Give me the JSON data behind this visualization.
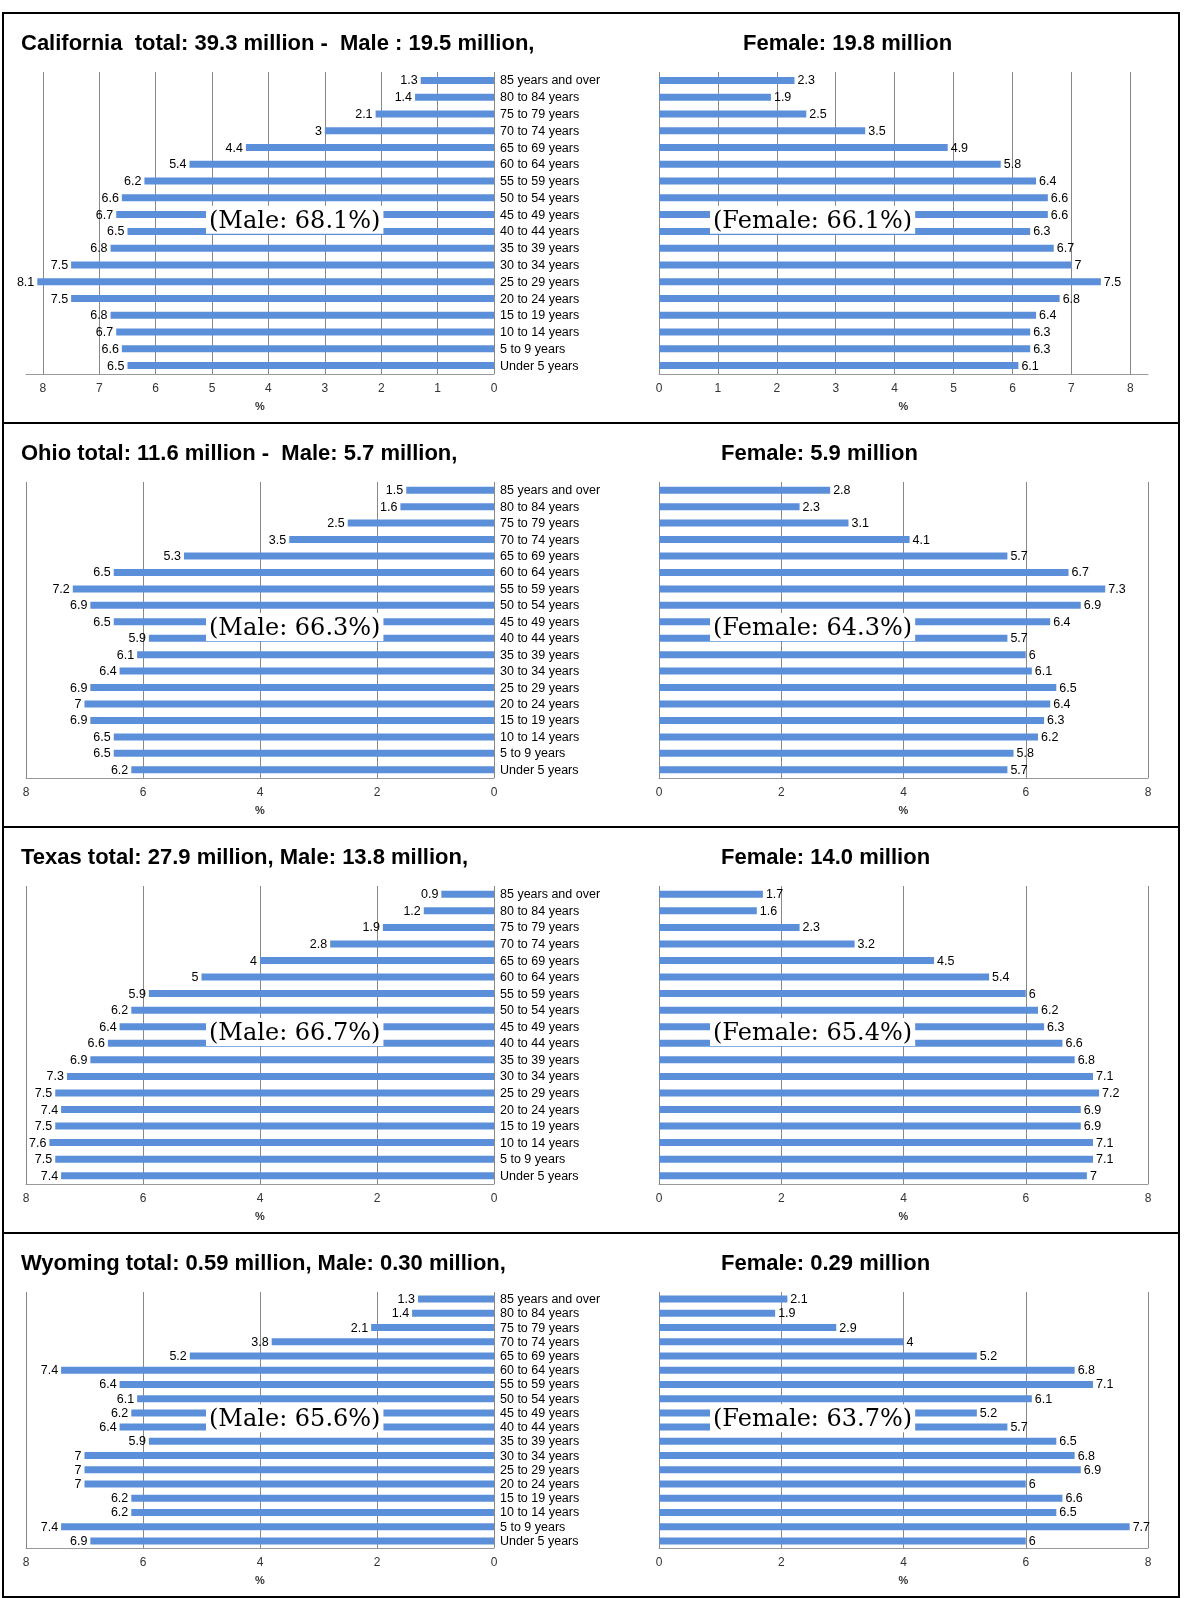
{
  "chart_data": [
    {
      "type": "bar",
      "orientation": "horizontal",
      "title": "California  total: 39.3 million -  Male : 19.5 million,",
      "categories": [
        "85 years and over",
        "80 to 84 years",
        "75 to 79 years",
        "70 to 74 years",
        "65 to 69 years",
        "60 to 64 years",
        "55 to 59 years",
        "50 to 54 years",
        "45 to 49 years",
        "40 to 44 years",
        "35 to 39 years",
        "30 to 34 years",
        "25 to 29 years",
        "20 to 24 years",
        "15 to 19 years",
        "10 to 14 years",
        "5 to 9 years",
        "Under 5 years"
      ],
      "series": [
        {
          "color": "#5b8fd9",
          "values": [
            1.3,
            1.4,
            2.1,
            3,
            4.4,
            5.4,
            6.2,
            6.6,
            6.7,
            6.5,
            6.8,
            7.5,
            8.1,
            7.5,
            6.8,
            6.7,
            6.6,
            6.5
          ]
        }
      ],
      "xlim": [
        8.3,
        0
      ],
      "xticks": [
        8,
        7,
        6,
        5,
        4,
        3,
        2,
        1,
        0
      ],
      "xlabel": "%",
      "grid": "x",
      "data_labels": true,
      "annotations": [
        "(Male: 68.1%)"
      ]
    },
    {
      "type": "bar",
      "orientation": "horizontal",
      "title": "Female: 19.8 million",
      "categories": [
        null,
        null,
        null,
        null,
        null,
        null,
        null,
        null,
        null,
        null,
        null,
        null,
        null,
        null,
        null,
        null,
        null,
        null
      ],
      "series": [
        {
          "color": "#5b8fd9",
          "values": [
            2.3,
            1.9,
            2.5,
            3.5,
            4.9,
            5.8,
            6.4,
            6.6,
            6.6,
            6.3,
            6.7,
            7,
            7.5,
            6.8,
            6.4,
            6.3,
            6.3,
            6.1
          ]
        }
      ],
      "xlim": [
        0,
        8.3
      ],
      "xticks": [
        0,
        1,
        2,
        3,
        4,
        5,
        6,
        7,
        8
      ],
      "xlabel": "%",
      "grid": "x",
      "data_labels": true,
      "annotations": [
        "(Female: 66.1%)"
      ]
    },
    {
      "type": "bar",
      "orientation": "horizontal",
      "title": "Ohio total: 11.6 million -  Male: 5.7 million,",
      "categories": [
        "85 years and over",
        "80 to 84 years",
        "75 to 79 years",
        "70 to 74 years",
        "65 to 69 years",
        "60 to 64 years",
        "55 to 59 years",
        "50 to 54 years",
        "45 to 49 years",
        "40 to 44 years",
        "35 to 39 years",
        "30 to 34 years",
        "25 to 29 years",
        "20 to 24 years",
        "15 to 19 years",
        "10 to 14 years",
        "5 to 9 years",
        "Under 5 years"
      ],
      "series": [
        {
          "color": "#5b8fd9",
          "values": [
            1.5,
            1.6,
            2.5,
            3.5,
            5.3,
            6.5,
            7.2,
            6.9,
            6.5,
            5.9,
            6.1,
            6.4,
            6.9,
            7,
            6.9,
            6.5,
            6.5,
            6.2
          ]
        }
      ],
      "xlim": [
        8,
        0
      ],
      "xticks": [
        8,
        6,
        4,
        2,
        0
      ],
      "xlabel": "%",
      "grid": "x",
      "data_labels": true,
      "annotations": [
        "(Male: 66.3%)"
      ]
    },
    {
      "type": "bar",
      "orientation": "horizontal",
      "title": "Female: 5.9 million",
      "categories": [
        null,
        null,
        null,
        null,
        null,
        null,
        null,
        null,
        null,
        null,
        null,
        null,
        null,
        null,
        null,
        null,
        null,
        null
      ],
      "series": [
        {
          "color": "#5b8fd9",
          "values": [
            2.8,
            2.3,
            3.1,
            4.1,
            5.7,
            6.7,
            7.3,
            6.9,
            6.4,
            5.7,
            6,
            6.1,
            6.5,
            6.4,
            6.3,
            6.2,
            5.8,
            5.7
          ]
        }
      ],
      "xlim": [
        0,
        8
      ],
      "xticks": [
        0,
        2,
        4,
        6,
        8
      ],
      "xlabel": "%",
      "grid": "x",
      "data_labels": true,
      "annotations": [
        "(Female: 64.3%)"
      ]
    },
    {
      "type": "bar",
      "orientation": "horizontal",
      "title": "Texas total: 27.9 million, Male: 13.8 million,",
      "categories": [
        "85 years and over",
        "80 to 84 years",
        "75 to 79 years",
        "70 to 74 years",
        "65 to 69 years",
        "60 to 64 years",
        "55 to 59 years",
        "50 to 54 years",
        "45 to 49 years",
        "40 to 44 years",
        "35 to 39 years",
        "30 to 34 years",
        "25 to 29 years",
        "20 to 24 years",
        "15 to 19 years",
        "10 to 14 years",
        "5 to 9 years",
        "Under 5 years"
      ],
      "series": [
        {
          "color": "#5b8fd9",
          "values": [
            0.9,
            1.2,
            1.9,
            2.8,
            4,
            5,
            5.9,
            6.2,
            6.4,
            6.6,
            6.9,
            7.3,
            7.5,
            7.4,
            7.5,
            7.6,
            7.5,
            7.4
          ]
        }
      ],
      "xlim": [
        8,
        0
      ],
      "xticks": [
        8,
        6,
        4,
        2,
        0
      ],
      "xlabel": "%",
      "grid": "x",
      "data_labels": true,
      "annotations": [
        "(Male: 66.7%)"
      ]
    },
    {
      "type": "bar",
      "orientation": "horizontal",
      "title": "Female: 14.0 million",
      "categories": [
        null,
        null,
        null,
        null,
        null,
        null,
        null,
        null,
        null,
        null,
        null,
        null,
        null,
        null,
        null,
        null,
        null,
        null
      ],
      "series": [
        {
          "color": "#5b8fd9",
          "values": [
            1.7,
            1.6,
            2.3,
            3.2,
            4.5,
            5.4,
            6,
            6.2,
            6.3,
            6.6,
            6.8,
            7.1,
            7.2,
            6.9,
            6.9,
            7.1,
            7.1,
            7
          ]
        }
      ],
      "xlim": [
        0,
        8
      ],
      "xticks": [
        0,
        2,
        4,
        6,
        8
      ],
      "xlabel": "%",
      "grid": "x",
      "data_labels": true,
      "annotations": [
        "(Female: 65.4%)"
      ]
    },
    {
      "type": "bar",
      "orientation": "horizontal",
      "title": "Wyoming total: 0.59 million, Male: 0.30 million,",
      "categories": [
        "85 years and over",
        "80 to 84 years",
        "75 to 79 years",
        "70 to 74 years",
        "65 to 69 years",
        "60 to 64 years",
        "55 to 59 years",
        "50 to 54 years",
        "45 to 49 years",
        "40 to 44 years",
        "35 to 39 years",
        "30 to 34 years",
        "25 to 29 years",
        "20 to 24 years",
        "15 to 19 years",
        "10 to 14 years",
        "5 to 9 years",
        "Under 5 years"
      ],
      "series": [
        {
          "color": "#5b8fd9",
          "values": [
            1.3,
            1.4,
            2.1,
            3.8,
            5.2,
            7.4,
            6.4,
            6.1,
            6.2,
            6.4,
            5.9,
            7,
            7,
            7,
            6.2,
            6.2,
            7.4,
            6.9
          ]
        }
      ],
      "xlim": [
        8,
        0
      ],
      "xticks": [
        8,
        6,
        4,
        2,
        0
      ],
      "xlabel": "%",
      "grid": "x",
      "data_labels": true,
      "annotations": [
        "(Male: 65.6%)"
      ]
    },
    {
      "type": "bar",
      "orientation": "horizontal",
      "title": "Female: 0.29 million",
      "categories": [
        null,
        null,
        null,
        null,
        null,
        null,
        null,
        null,
        null,
        null,
        null,
        null,
        null,
        null,
        null,
        null,
        null,
        null
      ],
      "series": [
        {
          "color": "#5b8fd9",
          "values": [
            2.1,
            1.9,
            2.9,
            4,
            5.2,
            6.8,
            7.1,
            6.1,
            5.2,
            5.7,
            6.5,
            6.8,
            6.9,
            6,
            6.6,
            6.5,
            7.7,
            6
          ]
        }
      ],
      "xlim": [
        0,
        8
      ],
      "xticks": [
        0,
        2,
        4,
        6,
        8
      ],
      "xlabel": "%",
      "grid": "x",
      "data_labels": true,
      "annotations": [
        "(Female: 63.7%)"
      ]
    }
  ]
}
